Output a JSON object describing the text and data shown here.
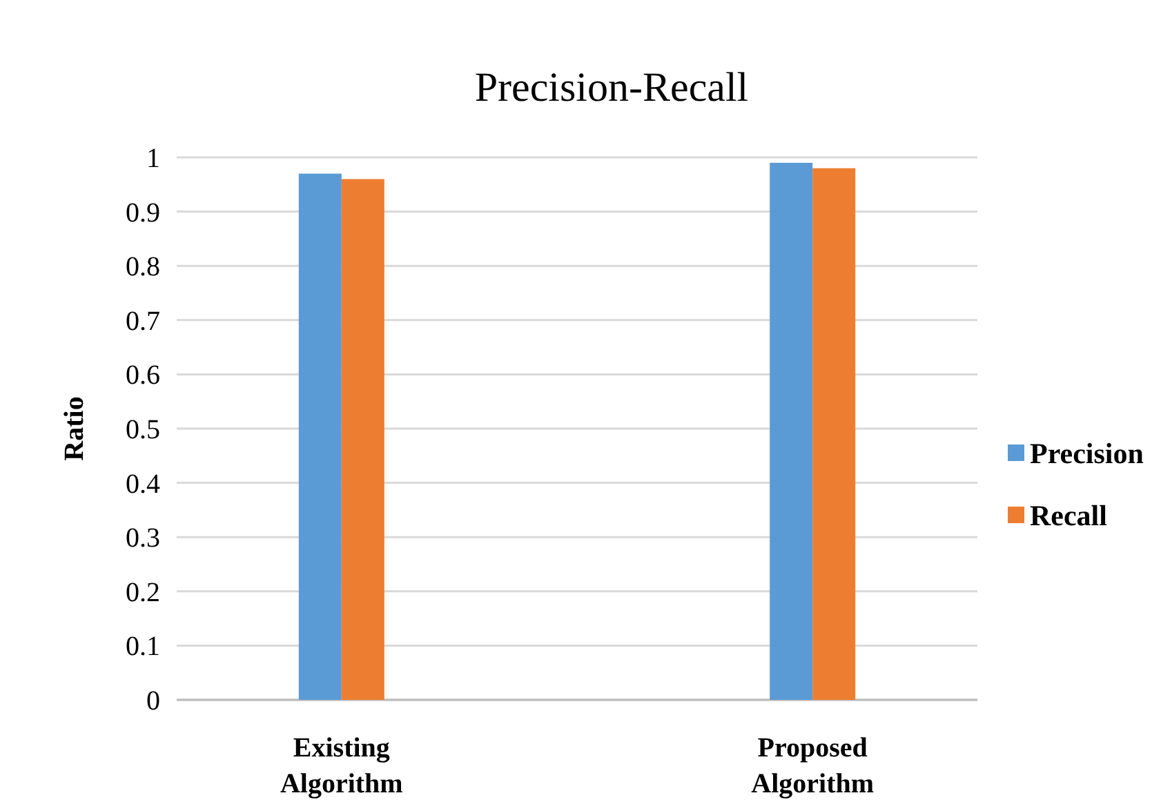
{
  "chart_data": {
    "type": "bar",
    "title": "Precision-Recall",
    "ylabel": "Ratio",
    "categories": [
      "Existing Algorithm",
      "Proposed Algorithm"
    ],
    "series": [
      {
        "name": "Precision",
        "color": "#5b9bd5",
        "values": [
          0.97,
          0.99
        ]
      },
      {
        "name": "Recall",
        "color": "#ed7d31",
        "values": [
          0.96,
          0.98
        ]
      }
    ],
    "ylim": [
      0,
      1
    ],
    "yticks": [
      0,
      0.1,
      0.2,
      0.3,
      0.4,
      0.5,
      0.6,
      0.7,
      0.8,
      0.9,
      1
    ],
    "grid": "y",
    "legend": "right"
  }
}
